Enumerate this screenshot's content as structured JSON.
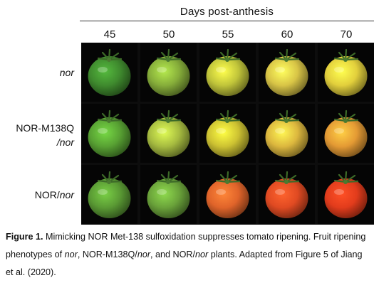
{
  "figure": {
    "header_title": "Days post-anthesis",
    "days": [
      "45",
      "50",
      "55",
      "60",
      "70"
    ],
    "rows": [
      {
        "genotype_main": "",
        "genotype_italic": "nor",
        "genotype_line2": ""
      },
      {
        "genotype_main": "NOR-M138Q",
        "genotype_italic": "",
        "genotype_line2": "/nor"
      },
      {
        "genotype_main": "NOR/",
        "genotype_italic": "nor",
        "genotype_line2": ""
      }
    ],
    "fruit_colors": [
      [
        "#3f8a2e",
        "#86ad3a",
        "#c0c43a",
        "#d8c446",
        "#e2cf3c"
      ],
      [
        "#58a133",
        "#a6bb40",
        "#cdc232",
        "#dcb73e",
        "#e49a34"
      ],
      [
        "#5a9a34",
        "#6aa23a",
        "#e0642a",
        "#e04a22",
        "#e23c1c"
      ]
    ]
  },
  "caption": {
    "label": "Figure 1.",
    "t1": " Mimicking NOR Met-138 sulfoxidation suppresses tomato ripening. Fruit ripening phenotypes of ",
    "i1": "nor",
    "t2": ", NOR-M138Q/",
    "i2": "nor",
    "t3": ", and NOR/",
    "i3": "nor",
    "t4": " plants. Adapted from Figure 5 of Jiang et al. (2020)."
  }
}
